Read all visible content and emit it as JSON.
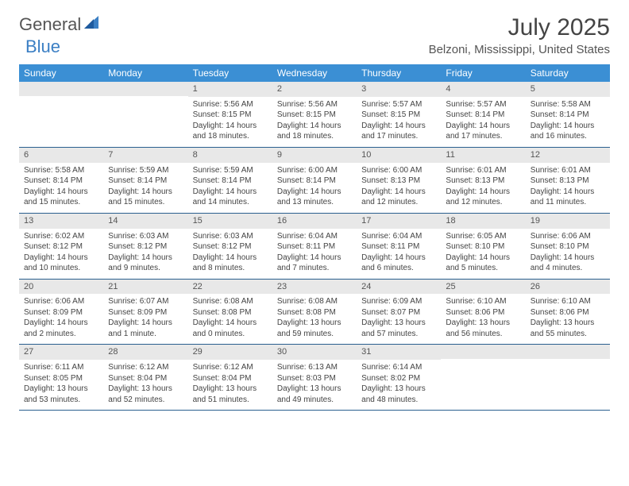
{
  "logo": {
    "part1": "General",
    "part2": "Blue"
  },
  "title": "July 2025",
  "location": "Belzoni, Mississippi, United States",
  "colors": {
    "header_bg": "#3b8fd4",
    "header_text": "#ffffff",
    "daynum_bg": "#e8e8e8",
    "border": "#2a5f8f",
    "logo_accent": "#3b7fc4",
    "text": "#444444"
  },
  "day_names": [
    "Sunday",
    "Monday",
    "Tuesday",
    "Wednesday",
    "Thursday",
    "Friday",
    "Saturday"
  ],
  "weeks": [
    [
      null,
      null,
      {
        "n": "1",
        "sr": "Sunrise: 5:56 AM",
        "ss": "Sunset: 8:15 PM",
        "d1": "Daylight: 14 hours",
        "d2": "and 18 minutes."
      },
      {
        "n": "2",
        "sr": "Sunrise: 5:56 AM",
        "ss": "Sunset: 8:15 PM",
        "d1": "Daylight: 14 hours",
        "d2": "and 18 minutes."
      },
      {
        "n": "3",
        "sr": "Sunrise: 5:57 AM",
        "ss": "Sunset: 8:15 PM",
        "d1": "Daylight: 14 hours",
        "d2": "and 17 minutes."
      },
      {
        "n": "4",
        "sr": "Sunrise: 5:57 AM",
        "ss": "Sunset: 8:14 PM",
        "d1": "Daylight: 14 hours",
        "d2": "and 17 minutes."
      },
      {
        "n": "5",
        "sr": "Sunrise: 5:58 AM",
        "ss": "Sunset: 8:14 PM",
        "d1": "Daylight: 14 hours",
        "d2": "and 16 minutes."
      }
    ],
    [
      {
        "n": "6",
        "sr": "Sunrise: 5:58 AM",
        "ss": "Sunset: 8:14 PM",
        "d1": "Daylight: 14 hours",
        "d2": "and 15 minutes."
      },
      {
        "n": "7",
        "sr": "Sunrise: 5:59 AM",
        "ss": "Sunset: 8:14 PM",
        "d1": "Daylight: 14 hours",
        "d2": "and 15 minutes."
      },
      {
        "n": "8",
        "sr": "Sunrise: 5:59 AM",
        "ss": "Sunset: 8:14 PM",
        "d1": "Daylight: 14 hours",
        "d2": "and 14 minutes."
      },
      {
        "n": "9",
        "sr": "Sunrise: 6:00 AM",
        "ss": "Sunset: 8:14 PM",
        "d1": "Daylight: 14 hours",
        "d2": "and 13 minutes."
      },
      {
        "n": "10",
        "sr": "Sunrise: 6:00 AM",
        "ss": "Sunset: 8:13 PM",
        "d1": "Daylight: 14 hours",
        "d2": "and 12 minutes."
      },
      {
        "n": "11",
        "sr": "Sunrise: 6:01 AM",
        "ss": "Sunset: 8:13 PM",
        "d1": "Daylight: 14 hours",
        "d2": "and 12 minutes."
      },
      {
        "n": "12",
        "sr": "Sunrise: 6:01 AM",
        "ss": "Sunset: 8:13 PM",
        "d1": "Daylight: 14 hours",
        "d2": "and 11 minutes."
      }
    ],
    [
      {
        "n": "13",
        "sr": "Sunrise: 6:02 AM",
        "ss": "Sunset: 8:12 PM",
        "d1": "Daylight: 14 hours",
        "d2": "and 10 minutes."
      },
      {
        "n": "14",
        "sr": "Sunrise: 6:03 AM",
        "ss": "Sunset: 8:12 PM",
        "d1": "Daylight: 14 hours",
        "d2": "and 9 minutes."
      },
      {
        "n": "15",
        "sr": "Sunrise: 6:03 AM",
        "ss": "Sunset: 8:12 PM",
        "d1": "Daylight: 14 hours",
        "d2": "and 8 minutes."
      },
      {
        "n": "16",
        "sr": "Sunrise: 6:04 AM",
        "ss": "Sunset: 8:11 PM",
        "d1": "Daylight: 14 hours",
        "d2": "and 7 minutes."
      },
      {
        "n": "17",
        "sr": "Sunrise: 6:04 AM",
        "ss": "Sunset: 8:11 PM",
        "d1": "Daylight: 14 hours",
        "d2": "and 6 minutes."
      },
      {
        "n": "18",
        "sr": "Sunrise: 6:05 AM",
        "ss": "Sunset: 8:10 PM",
        "d1": "Daylight: 14 hours",
        "d2": "and 5 minutes."
      },
      {
        "n": "19",
        "sr": "Sunrise: 6:06 AM",
        "ss": "Sunset: 8:10 PM",
        "d1": "Daylight: 14 hours",
        "d2": "and 4 minutes."
      }
    ],
    [
      {
        "n": "20",
        "sr": "Sunrise: 6:06 AM",
        "ss": "Sunset: 8:09 PM",
        "d1": "Daylight: 14 hours",
        "d2": "and 2 minutes."
      },
      {
        "n": "21",
        "sr": "Sunrise: 6:07 AM",
        "ss": "Sunset: 8:09 PM",
        "d1": "Daylight: 14 hours",
        "d2": "and 1 minute."
      },
      {
        "n": "22",
        "sr": "Sunrise: 6:08 AM",
        "ss": "Sunset: 8:08 PM",
        "d1": "Daylight: 14 hours",
        "d2": "and 0 minutes."
      },
      {
        "n": "23",
        "sr": "Sunrise: 6:08 AM",
        "ss": "Sunset: 8:08 PM",
        "d1": "Daylight: 13 hours",
        "d2": "and 59 minutes."
      },
      {
        "n": "24",
        "sr": "Sunrise: 6:09 AM",
        "ss": "Sunset: 8:07 PM",
        "d1": "Daylight: 13 hours",
        "d2": "and 57 minutes."
      },
      {
        "n": "25",
        "sr": "Sunrise: 6:10 AM",
        "ss": "Sunset: 8:06 PM",
        "d1": "Daylight: 13 hours",
        "d2": "and 56 minutes."
      },
      {
        "n": "26",
        "sr": "Sunrise: 6:10 AM",
        "ss": "Sunset: 8:06 PM",
        "d1": "Daylight: 13 hours",
        "d2": "and 55 minutes."
      }
    ],
    [
      {
        "n": "27",
        "sr": "Sunrise: 6:11 AM",
        "ss": "Sunset: 8:05 PM",
        "d1": "Daylight: 13 hours",
        "d2": "and 53 minutes."
      },
      {
        "n": "28",
        "sr": "Sunrise: 6:12 AM",
        "ss": "Sunset: 8:04 PM",
        "d1": "Daylight: 13 hours",
        "d2": "and 52 minutes."
      },
      {
        "n": "29",
        "sr": "Sunrise: 6:12 AM",
        "ss": "Sunset: 8:04 PM",
        "d1": "Daylight: 13 hours",
        "d2": "and 51 minutes."
      },
      {
        "n": "30",
        "sr": "Sunrise: 6:13 AM",
        "ss": "Sunset: 8:03 PM",
        "d1": "Daylight: 13 hours",
        "d2": "and 49 minutes."
      },
      {
        "n": "31",
        "sr": "Sunrise: 6:14 AM",
        "ss": "Sunset: 8:02 PM",
        "d1": "Daylight: 13 hours",
        "d2": "and 48 minutes."
      },
      null,
      null
    ]
  ]
}
